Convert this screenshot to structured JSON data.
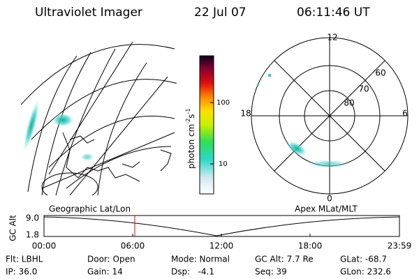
{
  "header": {
    "title": "Ultraviolet Imager",
    "date": "22 Jul 07",
    "time": "06:11:46 UT"
  },
  "colorbar": {
    "label": {
      "base": "photon cm",
      "exp1": "-2",
      "unit2": "s",
      "exp2": "-1"
    },
    "ticks": [
      "100",
      "10"
    ]
  },
  "polar": {
    "mlt_labels": [
      "12",
      "18",
      "6",
      "0"
    ],
    "lat_labels": [
      "60",
      "70",
      "80"
    ]
  },
  "altitude_plot": {
    "left_title": "Geographic Lat/Lon",
    "right_title": "Apex MLat/MLT",
    "y_label": "GC Alt",
    "y_ticks": [
      "9.0",
      "1.8"
    ],
    "x_ticks": [
      "00:00",
      "06:00",
      "12:00",
      "18:00",
      "23:59"
    ]
  },
  "status": {
    "rows": [
      [
        "Flt: LBHL",
        "Door: Open",
        "Mode: Normal",
        "GC Alt: 7.7 Re",
        "GLat: -68.7"
      ],
      [
        "IP: 36.0",
        "Gain: 14",
        "Dsp:   -4.1",
        "Seq: 39",
        "GLon: 232.6"
      ]
    ]
  }
}
